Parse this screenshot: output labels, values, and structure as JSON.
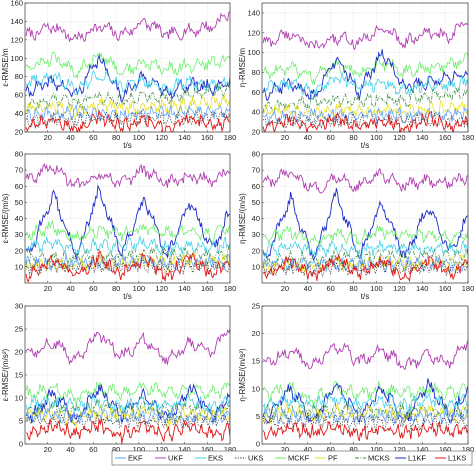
{
  "figure": {
    "x_ticks": [
      "20",
      "40",
      "60",
      "80",
      "100",
      "120",
      "140",
      "160",
      "180"
    ]
  },
  "legend": {
    "entries": [
      "EKF",
      "UKF",
      "EKS",
      "UKS",
      "MCKF",
      "PF",
      "MCKS",
      "L1KF",
      "L1KS"
    ],
    "placement": "bottom"
  },
  "series_styles": [
    {
      "name": "EKF",
      "color": "#5aa3ff",
      "dash": "solid"
    },
    {
      "name": "UKF",
      "color": "#b040b0",
      "dash": "solid"
    },
    {
      "name": "EKS",
      "color": "#3ad0e8",
      "dash": "solid"
    },
    {
      "name": "UKS",
      "color": "#333333",
      "dash": "dotted"
    },
    {
      "name": "MCKF",
      "color": "#66ee66",
      "dash": "solid"
    },
    {
      "name": "PF",
      "color": "#e8e020",
      "dash": "solid"
    },
    {
      "name": "MCKS",
      "color": "#3a8a3a",
      "dash": "dashdot"
    },
    {
      "name": "L1KF",
      "color": "#1a2ac8",
      "dash": "solid"
    },
    {
      "name": "L1KS",
      "color": "#e01818",
      "dash": "solid"
    }
  ],
  "chart_data": [
    {
      "type": "line",
      "id": "pos-eps",
      "xlabel": "t/s",
      "ylabel": "ε-RMSE/m",
      "xlim": [
        0,
        180
      ],
      "ylim": [
        20,
        160
      ],
      "yticks": [
        "20",
        "40",
        "60",
        "80",
        "100",
        "120",
        "140",
        "160"
      ],
      "grid": true,
      "x": [
        5,
        25,
        45,
        65,
        85,
        105,
        125,
        145,
        165,
        180
      ],
      "series": [
        {
          "name": "UKF",
          "values": [
            125,
            135,
            120,
            135,
            125,
            140,
            125,
            130,
            135,
            150
          ]
        },
        {
          "name": "MCKF",
          "values": [
            90,
            100,
            85,
            105,
            85,
            95,
            88,
            92,
            95,
            100
          ]
        },
        {
          "name": "L1KF",
          "values": [
            65,
            75,
            60,
            100,
            60,
            80,
            62,
            72,
            68,
            75
          ]
        },
        {
          "name": "EKS",
          "values": [
            75,
            80,
            68,
            82,
            70,
            75,
            68,
            74,
            70,
            72
          ]
        },
        {
          "name": "MCKS",
          "values": [
            50,
            55,
            52,
            58,
            55,
            60,
            57,
            62,
            65,
            68
          ]
        },
        {
          "name": "PF",
          "values": [
            45,
            48,
            42,
            50,
            45,
            48,
            47,
            50,
            52,
            55
          ]
        },
        {
          "name": "EKF",
          "values": [
            40,
            38,
            42,
            40,
            38,
            42,
            40,
            41,
            42,
            42
          ]
        },
        {
          "name": "UKS",
          "values": [
            32,
            34,
            33,
            35,
            34,
            36,
            35,
            36,
            37,
            38
          ]
        },
        {
          "name": "L1KS",
          "values": [
            25,
            35,
            22,
            38,
            25,
            35,
            24,
            36,
            26,
            32
          ]
        }
      ]
    },
    {
      "type": "line",
      "id": "pos-eta",
      "xlabel": "t/s",
      "ylabel": "η-RMSE/m",
      "xlim": [
        0,
        180
      ],
      "ylim": [
        20,
        150
      ],
      "yticks": [
        "20",
        "40",
        "60",
        "80",
        "100",
        "120",
        "140"
      ],
      "grid": true,
      "x": [
        5,
        25,
        45,
        65,
        85,
        105,
        125,
        145,
        165,
        180
      ],
      "series": [
        {
          "name": "UKF",
          "values": [
            110,
            120,
            105,
            115,
            110,
            125,
            110,
            120,
            115,
            135
          ]
        },
        {
          "name": "MCKF",
          "values": [
            80,
            85,
            75,
            88,
            78,
            90,
            80,
            85,
            88,
            95
          ]
        },
        {
          "name": "L1KF",
          "values": [
            60,
            70,
            55,
            95,
            60,
            100,
            65,
            70,
            75,
            80
          ]
        },
        {
          "name": "EKS",
          "values": [
            65,
            70,
            60,
            75,
            65,
            70,
            62,
            68,
            66,
            70
          ]
        },
        {
          "name": "MCKS",
          "values": [
            45,
            48,
            50,
            52,
            50,
            55,
            52,
            55,
            58,
            60
          ]
        },
        {
          "name": "PF",
          "values": [
            40,
            42,
            38,
            44,
            40,
            42,
            41,
            43,
            44,
            45
          ]
        },
        {
          "name": "EKF",
          "values": [
            36,
            35,
            38,
            36,
            35,
            38,
            36,
            37,
            38,
            38
          ]
        },
        {
          "name": "UKS",
          "values": [
            30,
            31,
            30,
            32,
            31,
            32,
            31,
            32,
            33,
            33
          ]
        },
        {
          "name": "L1KS",
          "values": [
            25,
            33,
            22,
            35,
            24,
            33,
            23,
            34,
            25,
            30
          ]
        }
      ]
    },
    {
      "type": "line",
      "id": "vel-eps",
      "xlabel": "t/s",
      "ylabel": "ε-RMSE/(m/s)",
      "xlim": [
        0,
        180
      ],
      "ylim": [
        0,
        80
      ],
      "yticks": [
        "10",
        "20",
        "30",
        "40",
        "50",
        "60",
        "70",
        "80"
      ],
      "grid": true,
      "x": [
        5,
        25,
        45,
        65,
        85,
        105,
        125,
        145,
        165,
        180
      ],
      "series": [
        {
          "name": "UKF",
          "values": [
            65,
            72,
            60,
            68,
            62,
            70,
            62,
            66,
            64,
            70
          ]
        },
        {
          "name": "L1KF",
          "values": [
            20,
            55,
            15,
            58,
            18,
            52,
            16,
            50,
            20,
            45
          ]
        },
        {
          "name": "MCKF",
          "values": [
            30,
            35,
            28,
            33,
            30,
            34,
            31,
            32,
            30,
            34
          ]
        },
        {
          "name": "EKS",
          "values": [
            22,
            25,
            20,
            24,
            22,
            25,
            21,
            23,
            22,
            24
          ]
        },
        {
          "name": "MCKS",
          "values": [
            14,
            16,
            15,
            17,
            16,
            18,
            17,
            18,
            17,
            19
          ]
        },
        {
          "name": "PF",
          "values": [
            10,
            12,
            11,
            13,
            12,
            14,
            12,
            14,
            13,
            15
          ]
        },
        {
          "name": "EKF",
          "values": [
            12,
            12,
            13,
            12,
            13,
            13,
            12,
            13,
            13,
            13
          ]
        },
        {
          "name": "UKS",
          "values": [
            9,
            10,
            9,
            10,
            10,
            11,
            10,
            11,
            10,
            11
          ]
        },
        {
          "name": "L1KS",
          "values": [
            5,
            15,
            4,
            16,
            5,
            15,
            4,
            16,
            5,
            14
          ]
        }
      ]
    },
    {
      "type": "line",
      "id": "vel-eta",
      "xlabel": "t/s",
      "ylabel": "η-RMSE/(m/s)",
      "xlim": [
        0,
        180
      ],
      "ylim": [
        0,
        80
      ],
      "yticks": [
        "10",
        "20",
        "30",
        "40",
        "50",
        "60",
        "70",
        "80"
      ],
      "grid": true,
      "x": [
        5,
        25,
        45,
        65,
        85,
        105,
        125,
        145,
        165,
        180
      ],
      "series": [
        {
          "name": "UKF",
          "values": [
            62,
            68,
            58,
            65,
            60,
            68,
            60,
            64,
            62,
            66
          ]
        },
        {
          "name": "L1KF",
          "values": [
            18,
            52,
            14,
            55,
            16,
            50,
            15,
            48,
            18,
            42
          ]
        },
        {
          "name": "MCKF",
          "values": [
            28,
            32,
            26,
            30,
            28,
            32,
            29,
            30,
            28,
            31
          ]
        },
        {
          "name": "EKS",
          "values": [
            20,
            23,
            19,
            22,
            20,
            23,
            20,
            22,
            20,
            22
          ]
        },
        {
          "name": "MCKS",
          "values": [
            13,
            15,
            14,
            16,
            15,
            17,
            16,
            17,
            16,
            18
          ]
        },
        {
          "name": "PF",
          "values": [
            9,
            11,
            10,
            12,
            11,
            13,
            11,
            13,
            12,
            14
          ]
        },
        {
          "name": "EKF",
          "values": [
            11,
            11,
            12,
            11,
            12,
            12,
            11,
            12,
            12,
            12
          ]
        },
        {
          "name": "UKS",
          "values": [
            8,
            9,
            8,
            9,
            9,
            10,
            9,
            10,
            9,
            10
          ]
        },
        {
          "name": "L1KS",
          "values": [
            5,
            14,
            4,
            15,
            5,
            14,
            4,
            15,
            5,
            13
          ]
        }
      ]
    },
    {
      "type": "line",
      "id": "acc-eps",
      "xlabel": "t/s",
      "ylabel": "ε-RMSE/(m/s²)",
      "xlim": [
        0,
        180
      ],
      "ylim": [
        0,
        30
      ],
      "yticks": [
        "0",
        "5",
        "10",
        "15",
        "20",
        "25",
        "30"
      ],
      "grid": true,
      "x": [
        5,
        25,
        45,
        65,
        85,
        105,
        125,
        145,
        165,
        180
      ],
      "series": [
        {
          "name": "UKF",
          "values": [
            20,
            22,
            18,
            24,
            19,
            23,
            18,
            22,
            20,
            26
          ]
        },
        {
          "name": "MCKF",
          "values": [
            11,
            12,
            10,
            12,
            11,
            12,
            11,
            12,
            11,
            12
          ]
        },
        {
          "name": "L1KF",
          "values": [
            6,
            11,
            5,
            12,
            6,
            11,
            5,
            12,
            6,
            11
          ]
        },
        {
          "name": "EKS",
          "values": [
            9,
            9,
            8,
            9,
            8,
            9,
            8,
            9,
            8,
            9
          ]
        },
        {
          "name": "MCKS",
          "values": [
            7,
            8,
            7,
            8,
            7,
            8,
            7,
            8,
            7,
            8
          ]
        },
        {
          "name": "PF",
          "values": [
            6,
            7,
            5,
            7,
            6,
            7,
            5,
            7,
            6,
            7
          ]
        },
        {
          "name": "EKF",
          "values": [
            6,
            6,
            6,
            6,
            6,
            6,
            6,
            6,
            6,
            6
          ]
        },
        {
          "name": "UKS",
          "values": [
            5,
            5,
            5,
            5,
            5,
            5,
            5,
            5,
            5,
            5
          ]
        },
        {
          "name": "L1KS",
          "values": [
            2,
            4,
            2,
            4,
            2,
            4,
            2,
            4,
            2,
            3
          ]
        }
      ]
    },
    {
      "type": "line",
      "id": "acc-eta",
      "xlabel": "t/s",
      "ylabel": "η-RMSE/(m/s²)",
      "xlim": [
        0,
        180
      ],
      "ylim": [
        0,
        25
      ],
      "yticks": [
        "0",
        "5",
        "10",
        "15",
        "20",
        "25"
      ],
      "grid": true,
      "x": [
        5,
        25,
        45,
        65,
        85,
        105,
        125,
        145,
        165,
        180
      ],
      "series": [
        {
          "name": "UKF",
          "values": [
            15,
            17,
            14,
            18,
            15,
            17,
            14,
            16,
            15,
            19
          ]
        },
        {
          "name": "MCKF",
          "values": [
            9,
            10,
            8,
            10,
            9,
            10,
            9,
            10,
            9,
            10
          ]
        },
        {
          "name": "L1KF",
          "values": [
            5,
            10,
            4,
            11,
            5,
            10,
            4,
            11,
            5,
            10
          ]
        },
        {
          "name": "EKS",
          "values": [
            7,
            8,
            7,
            8,
            7,
            8,
            7,
            8,
            7,
            8
          ]
        },
        {
          "name": "MCKS",
          "values": [
            6,
            6,
            6,
            6,
            6,
            6,
            6,
            6,
            6,
            6
          ]
        },
        {
          "name": "PF",
          "values": [
            5,
            6,
            5,
            6,
            5,
            6,
            5,
            6,
            5,
            6
          ]
        },
        {
          "name": "EKF",
          "values": [
            5,
            5,
            5,
            5,
            5,
            5,
            5,
            5,
            5,
            5
          ]
        },
        {
          "name": "UKS",
          "values": [
            4,
            4,
            4,
            4,
            4,
            4,
            4,
            4,
            4,
            4
          ]
        },
        {
          "name": "L1KS",
          "values": [
            2,
            3,
            2,
            3,
            2,
            3,
            2,
            3,
            2,
            3
          ]
        }
      ]
    }
  ]
}
